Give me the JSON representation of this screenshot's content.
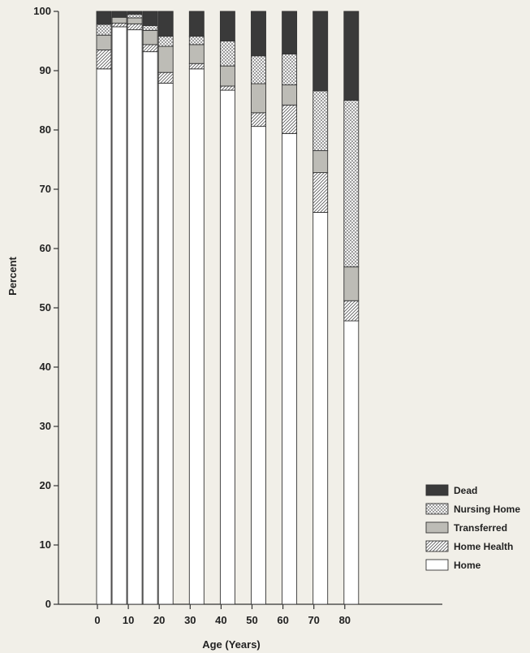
{
  "chart_data": {
    "type": "bar",
    "stacked": true,
    "xlabel": "Age (Years)",
    "ylabel": "Percent",
    "ylim": [
      0,
      100
    ],
    "y_ticks": [
      0,
      10,
      20,
      30,
      40,
      50,
      60,
      70,
      80,
      90,
      100
    ],
    "x_tick_labels": [
      "0",
      "10",
      "20",
      "30",
      "40",
      "50",
      "60",
      "70",
      "80"
    ],
    "categories": [
      "0",
      "5",
      "10",
      "15",
      "20",
      "30",
      "40",
      "50",
      "60",
      "70",
      "80"
    ],
    "series": [
      {
        "name": "Home",
        "color": "#ffffff",
        "values": [
          90.3,
          97.4,
          96.9,
          93.2,
          87.9,
          90.3,
          86.7,
          80.6,
          79.4,
          66.1,
          47.8
        ]
      },
      {
        "name": "Home Health",
        "color": "#ffffff",
        "values": [
          3.2,
          0.6,
          1.0,
          1.2,
          1.8,
          0.9,
          0.7,
          2.3,
          4.8,
          6.7,
          3.4
        ]
      },
      {
        "name": "Transferred",
        "color": "#bdbcb6",
        "values": [
          2.5,
          1.0,
          1.0,
          2.4,
          4.4,
          3.2,
          3.4,
          4.9,
          3.4,
          3.7,
          5.7
        ]
      },
      {
        "name": "Nursing Home",
        "color": "#ffffff",
        "values": [
          1.8,
          0.0,
          0.6,
          0.8,
          1.7,
          1.4,
          4.2,
          4.7,
          5.2,
          10.1,
          28.1
        ]
      },
      {
        "name": "Dead",
        "color": "#3a3a3a",
        "values": [
          2.2,
          1.0,
          0.5,
          2.4,
          4.2,
          4.2,
          5.0,
          7.5,
          7.2,
          13.4,
          15.0
        ]
      }
    ],
    "legend_position": "bottom-right",
    "grid": false
  }
}
